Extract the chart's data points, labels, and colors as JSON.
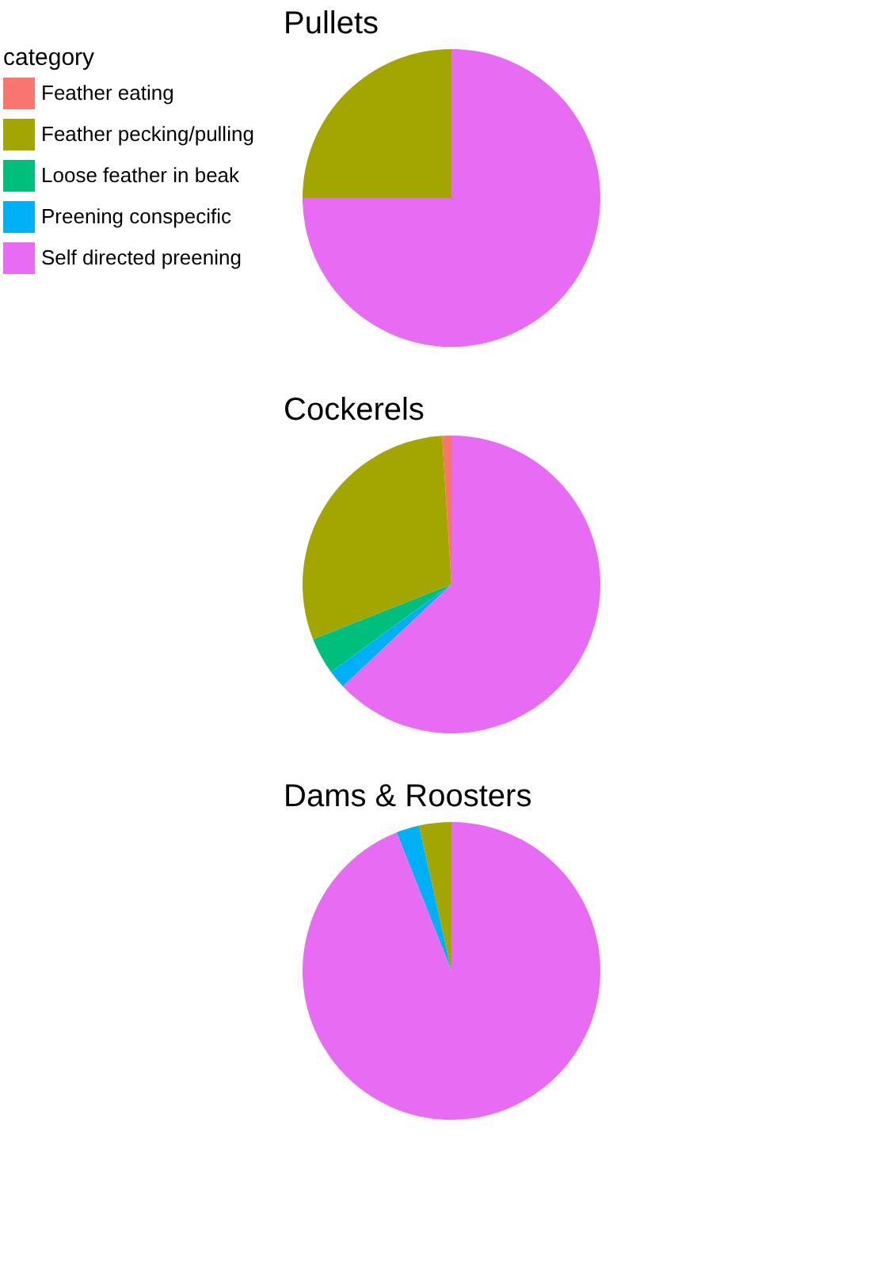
{
  "chart_data": [
    {
      "type": "pie",
      "title": "Pullets",
      "legend_title": "category",
      "legend": "left",
      "categories": [
        "Feather eating",
        "Feather pecking/pulling",
        "Loose feather in beak",
        "Preening conspecific",
        "Self directed preening"
      ],
      "values": [
        0,
        25,
        0,
        0,
        75
      ],
      "colors": [
        "#f8766d",
        "#a3a500",
        "#00bf7d",
        "#00b0f6",
        "#e76bf3"
      ]
    },
    {
      "type": "pie",
      "title": "Cockerels",
      "categories": [
        null,
        null,
        null,
        null,
        null
      ],
      "values": [
        1,
        30,
        4,
        2,
        63
      ],
      "colors": [
        "#f8766d",
        "#a3a500",
        "#00bf7d",
        "#00b0f6",
        "#e76bf3"
      ]
    },
    {
      "type": "pie",
      "title": "Dams & Roosters",
      "categories": [
        null,
        null,
        null,
        null,
        null
      ],
      "values": [
        0,
        3.5,
        0,
        2.5,
        94
      ],
      "colors": [
        "#f8766d",
        "#a3a500",
        "#00bf7d",
        "#00b0f6",
        "#e76bf3"
      ]
    }
  ]
}
